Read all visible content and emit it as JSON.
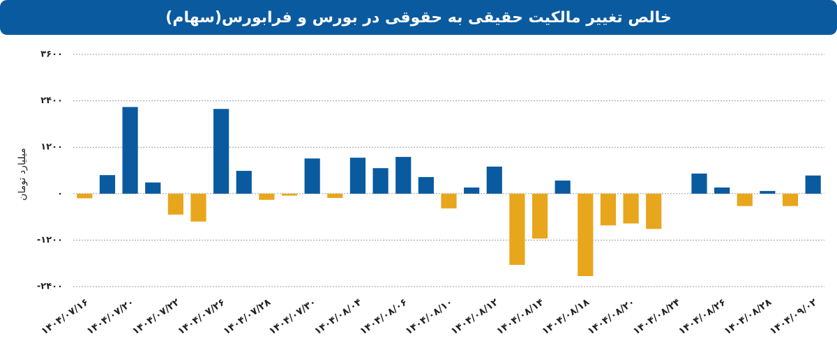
{
  "chart_data": {
    "type": "bar",
    "title": "خالص تغییر مالکیت حقیقی به حقوقی در بورس و فرابورس(سهام)",
    "y_label": "میلیارد تومان",
    "categories": [
      "۱۴۰۴/۰۷/۱۶",
      null,
      "۱۴۰۴/۰۷/۲۰",
      null,
      "۱۴۰۴/۰۷/۲۲",
      null,
      "۱۴۰۴/۰۷/۲۶",
      null,
      "۱۴۰۴/۰۷/۲۸",
      null,
      "۱۴۰۴/۰۷/۳۰",
      null,
      "۱۴۰۴/۰۸/۰۴",
      null,
      "۱۴۰۴/۰۸/۰۶",
      null,
      "۱۴۰۴/۰۸/۱۰",
      null,
      "۱۴۰۴/۰۸/۱۲",
      null,
      "۱۴۰۴/۰۸/۱۴",
      null,
      "۱۴۰۴/۰۸/۱۸",
      null,
      "۱۴۰۴/۰۸/۲۰",
      null,
      "۱۴۰۴/۰۸/۲۴",
      null,
      "۱۴۰۴/۰۸/۲۶",
      null,
      "۱۴۰۴/۰۸/۲۸",
      null,
      "۱۴۰۴/۰۹/۰۲"
    ],
    "values": [
      -120,
      480,
      2240,
      290,
      -540,
      -720,
      2190,
      590,
      -160,
      -50,
      910,
      -110,
      930,
      660,
      950,
      430,
      -380,
      160,
      700,
      -1840,
      -1160,
      340,
      -2130,
      -820,
      -770,
      -910,
      null,
      520,
      160,
      -320,
      70,
      -320,
      470
    ],
    "positive_color": "#0a5aa0",
    "negative_color": "#e8a61c",
    "ylim": [
      -2400,
      3600
    ],
    "yticks": [
      {
        "value": -2400,
        "label": "-۲۴۰۰"
      },
      {
        "value": -1200,
        "label": "-۱۲۰۰"
      },
      {
        "value": 0,
        "label": "۰"
      },
      {
        "value": 1200,
        "label": "۱۲۰۰"
      },
      {
        "value": 2400,
        "label": "۲۴۰۰"
      },
      {
        "value": 3600,
        "label": "۳۶۰۰"
      }
    ],
    "grid": true
  }
}
